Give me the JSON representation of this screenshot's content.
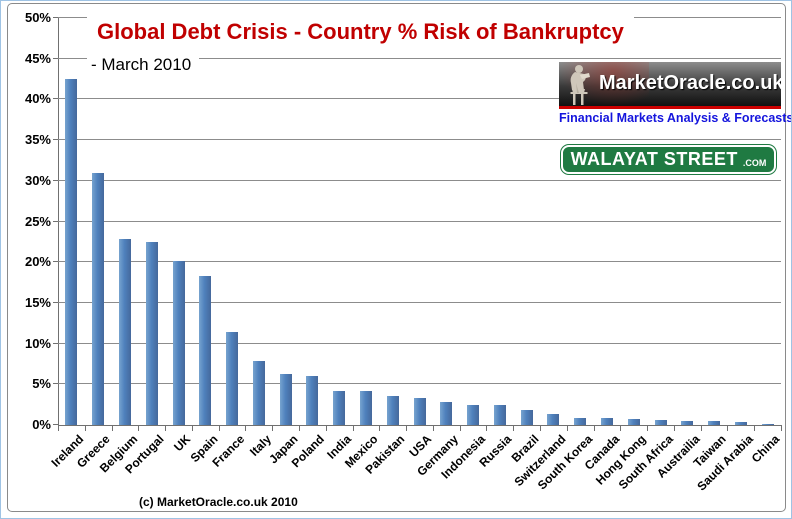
{
  "chart": {
    "title": "Global Debt Crisis - Country % Risk of Bankruptcy",
    "subtitle": "- March 2010",
    "footer": "(c) MarketOracle.co.uk 2010"
  },
  "logos": {
    "market_oracle": {
      "name": "MarketOracle.co.uk",
      "tagline": "Financial Markets Analysis & Forecasts",
      "statue_icon": "seated-oracle-statue-icon"
    },
    "walayat_street": {
      "name": "WALAYAT STREET",
      "suffix": ".COM"
    }
  },
  "colors": {
    "bar_blue": "#4F81BD",
    "title_red": "#C00000",
    "stripe_red": "#CC0000",
    "tagline_blue": "#1515DD",
    "sign_green": "#1F7A42",
    "gridline_gray": "#8C8C8C",
    "axis_gray": "#707070",
    "outer_border_blue": "#9FC3E4"
  },
  "chart_data": {
    "type": "bar",
    "title": "Global Debt Crisis - Country % Risk of Bankruptcy",
    "subtitle": "- March 2010",
    "xlabel": "",
    "ylabel": "",
    "ylim": [
      0,
      50
    ],
    "grid": true,
    "legend": "none",
    "y_tick_labels": [
      "0%",
      "5%",
      "10%",
      "15%",
      "20%",
      "25%",
      "30%",
      "35%",
      "40%",
      "45%",
      "50%"
    ],
    "categories": [
      "Ireland",
      "Greece",
      "Belgium",
      "Portugal",
      "UK",
      "Spain",
      "France",
      "Italy",
      "Japan",
      "Poland",
      "India",
      "Mexico",
      "Pakistan",
      "USA",
      "Germany",
      "Indonesia",
      "Russia",
      "Brazil",
      "Switzerland",
      "South Korea",
      "Canada",
      "Hong Kong",
      "South Africa",
      "Austrailia",
      "Taiwan",
      "Saudi Arabia",
      "China"
    ],
    "values": [
      42.5,
      30.9,
      22.8,
      22.5,
      20.2,
      18.3,
      11.4,
      7.9,
      6.3,
      6.0,
      4.2,
      4.2,
      3.6,
      3.3,
      2.8,
      2.5,
      2.4,
      1.8,
      1.3,
      0.85,
      0.85,
      0.78,
      0.62,
      0.45,
      0.55,
      0.32,
      0.12
    ]
  }
}
